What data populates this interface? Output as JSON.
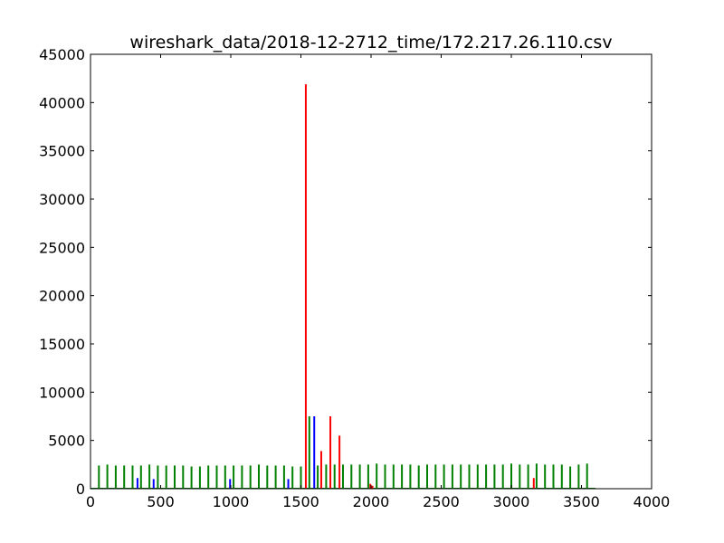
{
  "chart_data": {
    "type": "bar",
    "title": "wireshark_data/2018-12-2712_time/172.217.26.110.csv",
    "xlabel": "",
    "ylabel": "",
    "xlim": [
      0,
      4000
    ],
    "ylim": [
      0,
      45000
    ],
    "x_ticks": [
      0,
      500,
      1000,
      1500,
      2000,
      2500,
      3000,
      3500,
      4000
    ],
    "y_ticks": [
      0,
      5000,
      10000,
      15000,
      20000,
      25000,
      30000,
      35000,
      40000,
      45000
    ],
    "x_tick_labels": [
      "0",
      "500",
      "1000",
      "1500",
      "2000",
      "2500",
      "3000",
      "3500",
      "4000"
    ],
    "y_tick_labels": [
      "0",
      "5000",
      "10000",
      "15000",
      "20000",
      "25000",
      "30000",
      "35000",
      "40000",
      "45000"
    ],
    "grid": false,
    "legend": "none",
    "series": [
      {
        "color": "#008000",
        "x": [
          60,
          120,
          180,
          240,
          300,
          360,
          420,
          480,
          540,
          600,
          660,
          720,
          780,
          840,
          900,
          960,
          1020,
          1080,
          1140,
          1200,
          1260,
          1320,
          1380,
          1440,
          1500,
          1560,
          1620,
          1680,
          1740,
          1800,
          1860,
          1920,
          1980,
          2040,
          2100,
          2160,
          2220,
          2280,
          2340,
          2400,
          2460,
          2520,
          2580,
          2640,
          2700,
          2760,
          2820,
          2880,
          2940,
          3000,
          3060,
          3120,
          3180,
          3240,
          3300,
          3360,
          3420,
          3480,
          3540
        ],
        "values": [
          2400,
          2500,
          2400,
          2400,
          2400,
          2400,
          2500,
          2400,
          2400,
          2400,
          2400,
          2300,
          2300,
          2400,
          2400,
          2400,
          2400,
          2400,
          2400,
          2500,
          2400,
          2400,
          2400,
          2300,
          2300,
          7500,
          2400,
          2500,
          2500,
          2500,
          2500,
          2500,
          2500,
          2600,
          2500,
          2500,
          2500,
          2500,
          2400,
          2500,
          2500,
          2500,
          2500,
          2500,
          2500,
          2500,
          2500,
          2500,
          2500,
          2600,
          2500,
          2500,
          2600,
          2500,
          2500,
          2500,
          2300,
          2500,
          2600
        ]
      },
      {
        "color": "#0000ff",
        "x": [
          335,
          450,
          995,
          1410,
          1595
        ],
        "values": [
          1100,
          1000,
          1000,
          1000,
          7500
        ]
      },
      {
        "color": "#ff0000",
        "x": [
          1535,
          1645,
          1710,
          1775,
          1995,
          2010,
          3160
        ],
        "values": [
          41900,
          3900,
          7500,
          5500,
          500,
          300,
          1100
        ]
      }
    ]
  }
}
